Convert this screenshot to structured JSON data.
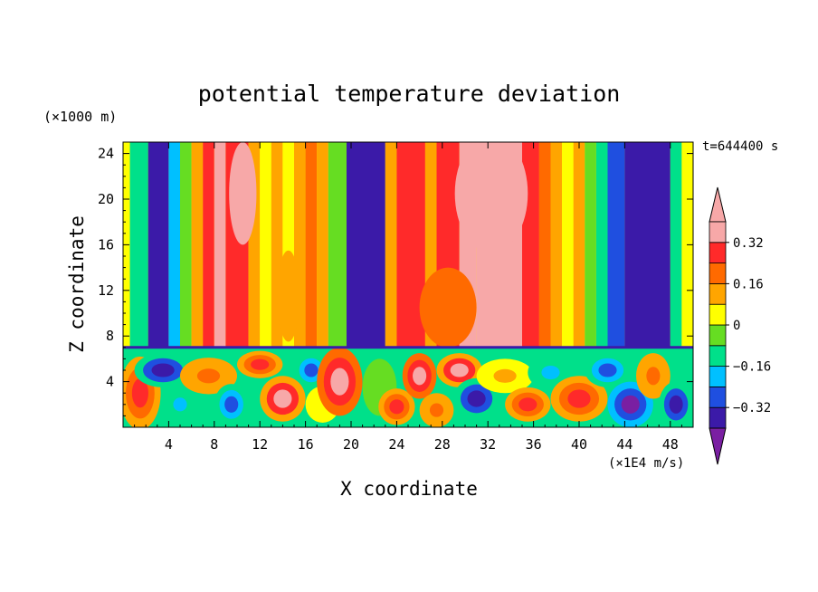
{
  "chart_data": {
    "type": "heatmap",
    "title": "potential temperature deviation",
    "xlabel": "X coordinate",
    "ylabel": "Z coordinate",
    "x_unit": "(×1E4 m/s)",
    "y_unit": "(×1000 m)",
    "time_label": "t=644400 s",
    "xlim": [
      0,
      50
    ],
    "ylim": [
      0,
      25
    ],
    "x_ticks": [
      4,
      8,
      12,
      16,
      20,
      24,
      28,
      32,
      36,
      40,
      44,
      48
    ],
    "y_ticks": [
      4,
      8,
      12,
      16,
      20,
      24
    ],
    "colorbar": {
      "levels": [
        -0.4,
        -0.32,
        -0.24,
        -0.16,
        -0.08,
        0,
        0.08,
        0.16,
        0.24,
        0.32,
        0.4
      ],
      "labels": [
        "0.32",
        "0.16",
        "0",
        "−0.16",
        "−0.32"
      ],
      "label_values": [
        0.32,
        0.16,
        0,
        -0.16,
        -0.32
      ],
      "colors": [
        "#7a1fa2",
        "#3b1aa8",
        "#1f4fe0",
        "#00c0ff",
        "#00e08a",
        "#66dd22",
        "#ffff00",
        "#ffa500",
        "#ff6a00",
        "#ff2a2a",
        "#f7a8a8"
      ]
    },
    "upper_columns": [
      {
        "x0": 0,
        "x1": 0.6,
        "value": 0.0
      },
      {
        "x0": 0.6,
        "x1": 2.2,
        "value": -0.1
      },
      {
        "x0": 2.2,
        "x1": 4.0,
        "value": -0.38
      },
      {
        "x0": 4.0,
        "x1": 5.0,
        "value": -0.2
      },
      {
        "x0": 5.0,
        "x1": 6.0,
        "value": -0.05
      },
      {
        "x0": 6.0,
        "x1": 7.0,
        "value": 0.12
      },
      {
        "x0": 7.0,
        "x1": 8.0,
        "value": 0.3
      },
      {
        "x0": 8.0,
        "x1": 9.0,
        "value": 0.33
      },
      {
        "x0": 9.0,
        "x1": 11.0,
        "value": 0.25
      },
      {
        "x0": 11.0,
        "x1": 12.0,
        "value": 0.15
      },
      {
        "x0": 12.0,
        "x1": 13.0,
        "value": 0.05
      },
      {
        "x0": 13.0,
        "x1": 14.0,
        "value": 0.12
      },
      {
        "x0": 14.0,
        "x1": 15.0,
        "value": 0.0
      },
      {
        "x0": 15.0,
        "x1": 16.0,
        "value": 0.12
      },
      {
        "x0": 16.0,
        "x1": 17.0,
        "value": 0.18
      },
      {
        "x0": 17.0,
        "x1": 18.0,
        "value": 0.08
      },
      {
        "x0": 18.0,
        "x1": 19.6,
        "value": -0.08
      },
      {
        "x0": 19.6,
        "x1": 23.0,
        "value": -0.4
      },
      {
        "x0": 23.0,
        "x1": 24.0,
        "value": 0.1
      },
      {
        "x0": 24.0,
        "x1": 25.0,
        "value": 0.25
      },
      {
        "x0": 25.0,
        "x1": 26.5,
        "value": 0.28
      },
      {
        "x0": 26.5,
        "x1": 27.5,
        "value": 0.15
      },
      {
        "x0": 27.5,
        "x1": 29.5,
        "value": 0.25
      },
      {
        "x0": 29.5,
        "x1": 31.0,
        "value": 0.34
      },
      {
        "x0": 31.0,
        "x1": 35.0,
        "value": 0.4
      },
      {
        "x0": 35.0,
        "x1": 36.5,
        "value": 0.3
      },
      {
        "x0": 36.5,
        "x1": 37.5,
        "value": 0.2
      },
      {
        "x0": 37.5,
        "x1": 38.5,
        "value": 0.12
      },
      {
        "x0": 38.5,
        "x1": 39.5,
        "value": 0.05
      },
      {
        "x0": 39.5,
        "x1": 40.5,
        "value": 0.1
      },
      {
        "x0": 40.5,
        "x1": 41.5,
        "value": -0.05
      },
      {
        "x0": 41.5,
        "x1": 42.5,
        "value": -0.15
      },
      {
        "x0": 42.5,
        "x1": 44.0,
        "value": -0.32
      },
      {
        "x0": 44.0,
        "x1": 48.0,
        "value": -0.4
      },
      {
        "x0": 48.0,
        "x1": 49.0,
        "value": -0.1
      },
      {
        "x0": 49.0,
        "x1": 50.0,
        "value": 0.05
      }
    ],
    "upper_overlays": [
      {
        "cx": 32.3,
        "cy": 20.5,
        "rx": 3.2,
        "ry": 5.2,
        "value": 0.4
      },
      {
        "cx": 28.5,
        "cy": 10.5,
        "rx": 2.5,
        "ry": 3.5,
        "value": 0.18
      },
      {
        "cx": 10.5,
        "cy": 20.5,
        "rx": 1.2,
        "ry": 4.5,
        "value": 0.34
      },
      {
        "cx": 14.5,
        "cy": 11.5,
        "rx": 1.0,
        "ry": 4.0,
        "value": 0.12
      }
    ],
    "lower_blobs": [
      {
        "cx": 1.5,
        "cy": 3.0,
        "rx": 1.8,
        "ry": 3.2,
        "value": 0.3
      },
      {
        "cx": 3.5,
        "cy": 5.0,
        "rx": 2.5,
        "ry": 1.5,
        "value": -0.35
      },
      {
        "cx": 5.0,
        "cy": 2.0,
        "rx": 1.5,
        "ry": 1.5,
        "value": -0.2
      },
      {
        "cx": 7.5,
        "cy": 4.5,
        "rx": 2.5,
        "ry": 1.6,
        "value": 0.2
      },
      {
        "cx": 9.5,
        "cy": 2.0,
        "rx": 1.5,
        "ry": 1.8,
        "value": -0.3
      },
      {
        "cx": 12.0,
        "cy": 5.5,
        "rx": 2.0,
        "ry": 1.2,
        "value": 0.3
      },
      {
        "cx": 14.0,
        "cy": 2.5,
        "rx": 2.0,
        "ry": 2.0,
        "value": 0.35
      },
      {
        "cx": 16.5,
        "cy": 5.0,
        "rx": 1.5,
        "ry": 1.5,
        "value": -0.3
      },
      {
        "cx": 17.5,
        "cy": 2.0,
        "rx": 1.5,
        "ry": 1.6,
        "value": 0.05
      },
      {
        "cx": 19.0,
        "cy": 4.0,
        "rx": 2.0,
        "ry": 3.0,
        "value": 0.4
      },
      {
        "cx": 22.5,
        "cy": 3.5,
        "rx": 1.5,
        "ry": 2.5,
        "value": -0.05
      },
      {
        "cx": 24.0,
        "cy": 1.8,
        "rx": 1.6,
        "ry": 1.6,
        "value": 0.3
      },
      {
        "cx": 26.0,
        "cy": 4.5,
        "rx": 1.5,
        "ry": 2.0,
        "value": 0.4
      },
      {
        "cx": 27.5,
        "cy": 1.5,
        "rx": 1.5,
        "ry": 1.5,
        "value": 0.2
      },
      {
        "cx": 29.5,
        "cy": 5.0,
        "rx": 2.0,
        "ry": 1.5,
        "value": 0.35
      },
      {
        "cx": 31.0,
        "cy": 2.5,
        "rx": 2.0,
        "ry": 1.8,
        "value": -0.35
      },
      {
        "cx": 33.5,
        "cy": 4.5,
        "rx": 2.5,
        "ry": 1.5,
        "value": 0.1
      },
      {
        "cx": 35.5,
        "cy": 2.0,
        "rx": 2.0,
        "ry": 1.5,
        "value": 0.3
      },
      {
        "cx": 37.5,
        "cy": 4.8,
        "rx": 2.0,
        "ry": 1.5,
        "value": -0.2
      },
      {
        "cx": 40.0,
        "cy": 2.5,
        "rx": 2.5,
        "ry": 2.0,
        "value": 0.25
      },
      {
        "cx": 42.5,
        "cy": 5.0,
        "rx": 2.0,
        "ry": 1.5,
        "value": -0.3
      },
      {
        "cx": 44.5,
        "cy": 2.0,
        "rx": 2.0,
        "ry": 2.0,
        "value": -0.4
      },
      {
        "cx": 46.5,
        "cy": 4.5,
        "rx": 1.5,
        "ry": 2.0,
        "value": 0.2
      },
      {
        "cx": 48.5,
        "cy": 2.0,
        "rx": 1.5,
        "ry": 2.0,
        "value": -0.35
      }
    ],
    "boundary_z": 7
  }
}
